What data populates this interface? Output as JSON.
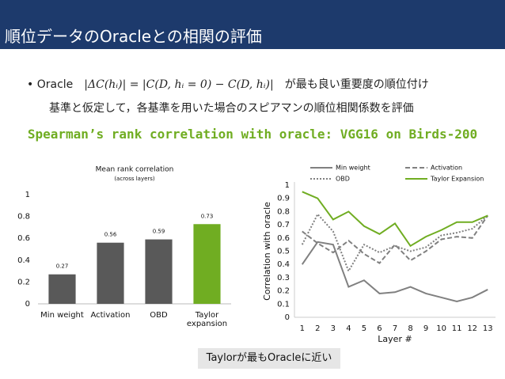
{
  "header": {
    "title": "順位データのOracleとの相関の評価"
  },
  "bullet": {
    "lead": "Oracle",
    "formula": "|ΔC(hᵢ)| = |C(D, hᵢ = 0) − C(D, hᵢ)|",
    "tail": "が最も良い重要度の順位付け",
    "line2": "基準と仮定して，各基準を用いた場合のスピアマンの順位相関係数を評価"
  },
  "subtitle": "Spearman’s rank correlation with oracle: VGG16 on Birds-200",
  "caption": "Taylorが最もOracleに近い",
  "chart_data": [
    {
      "type": "bar",
      "title": "Mean rank correlation",
      "subtitle": "(across layers)",
      "categories": [
        "Min weight",
        "Activation",
        "OBD",
        "Taylor\nexpansion"
      ],
      "values": [
        0.27,
        0.56,
        0.59,
        0.73
      ],
      "colors": [
        "#595959",
        "#595959",
        "#595959",
        "#70ad22"
      ],
      "ylim": [
        0,
        1
      ],
      "yticks": [
        0,
        0.2,
        0.4,
        0.6,
        0.8,
        1
      ],
      "grid": false
    },
    {
      "type": "line",
      "y_label": "Correlation with oracle",
      "x_label": "Layer #",
      "x": [
        1,
        2,
        3,
        4,
        5,
        6,
        7,
        8,
        9,
        10,
        11,
        12,
        13
      ],
      "series": [
        {
          "name": "Min weight",
          "color": "#808080",
          "dash": "solid",
          "values": [
            0.4,
            0.57,
            0.55,
            0.23,
            0.28,
            0.18,
            0.19,
            0.23,
            0.18,
            0.15,
            0.12,
            0.15,
            0.21
          ]
        },
        {
          "name": "Activation",
          "color": "#808080",
          "dash": "dashed",
          "values": [
            0.65,
            0.56,
            0.49,
            0.58,
            0.48,
            0.41,
            0.55,
            0.43,
            0.5,
            0.59,
            0.61,
            0.6,
            0.77
          ]
        },
        {
          "name": "OBD",
          "color": "#808080",
          "dash": "dotted",
          "values": [
            0.55,
            0.78,
            0.65,
            0.35,
            0.55,
            0.49,
            0.54,
            0.5,
            0.53,
            0.62,
            0.64,
            0.67,
            0.77
          ]
        },
        {
          "name": "Taylor Expansion",
          "color": "#70ad22",
          "dash": "solid",
          "values": [
            0.95,
            0.9,
            0.74,
            0.8,
            0.69,
            0.63,
            0.71,
            0.54,
            0.61,
            0.66,
            0.72,
            0.72,
            0.77
          ]
        }
      ],
      "xlim": [
        0.5,
        13.5
      ],
      "xticks": [
        1,
        2,
        3,
        4,
        5,
        6,
        7,
        8,
        9,
        10,
        11,
        12,
        13
      ],
      "ylim": [
        0,
        1
      ],
      "yticks": [
        0,
        0.1,
        0.2,
        0.3,
        0.4,
        0.5,
        0.6,
        0.7,
        0.8,
        0.9,
        1
      ],
      "grid": false,
      "legend": "top"
    }
  ]
}
